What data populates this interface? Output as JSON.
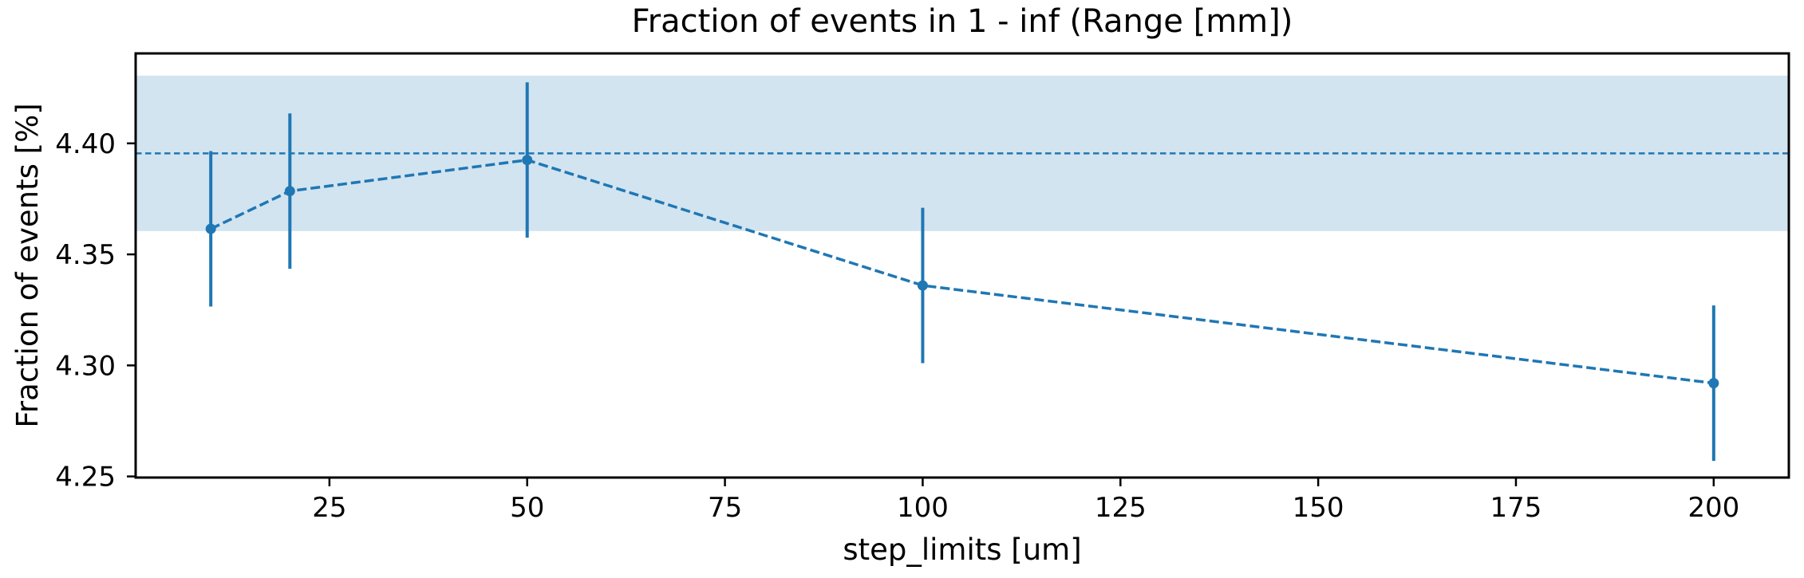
{
  "figure": {
    "title": "Fraction of events in 1 - inf (Range [mm])",
    "xlabel": "step_limits [um]",
    "ylabel": "Fraction of events [%]"
  },
  "chart_data": {
    "type": "line",
    "title": "Fraction of events in 1 - inf (Range [mm])",
    "xlabel": "step_limits [um]",
    "ylabel": "Fraction of events [%]",
    "x": [
      10,
      20,
      50,
      100,
      200
    ],
    "y": [
      4.3615,
      4.3785,
      4.3925,
      4.336,
      4.292
    ],
    "yerr": [
      0.035,
      0.035,
      0.035,
      0.035,
      0.035
    ],
    "line_style": "dashed",
    "marker": "circle",
    "error_bars": true,
    "reference_line": {
      "value": 4.3955,
      "style": "dashed"
    },
    "reference_band": {
      "low": 4.3605,
      "high": 4.4305
    },
    "xlim": [
      0.5,
      209.5
    ],
    "ylim": [
      4.2495,
      4.4405
    ],
    "xticks": [
      25,
      50,
      75,
      100,
      125,
      150,
      175,
      200
    ],
    "xtick_labels": [
      "25",
      "50",
      "75",
      "100",
      "125",
      "150",
      "175",
      "200"
    ],
    "yticks": [
      4.25,
      4.3,
      4.35,
      4.4
    ],
    "ytick_labels": [
      "4.25",
      "4.30",
      "4.35",
      "4.40"
    ],
    "grid": false,
    "legend": null,
    "colors": {
      "series": "#1f77b4",
      "band_fill": "#1f77b4",
      "band_opacity": 0.2,
      "axes": "#000000",
      "background": "#ffffff"
    }
  }
}
